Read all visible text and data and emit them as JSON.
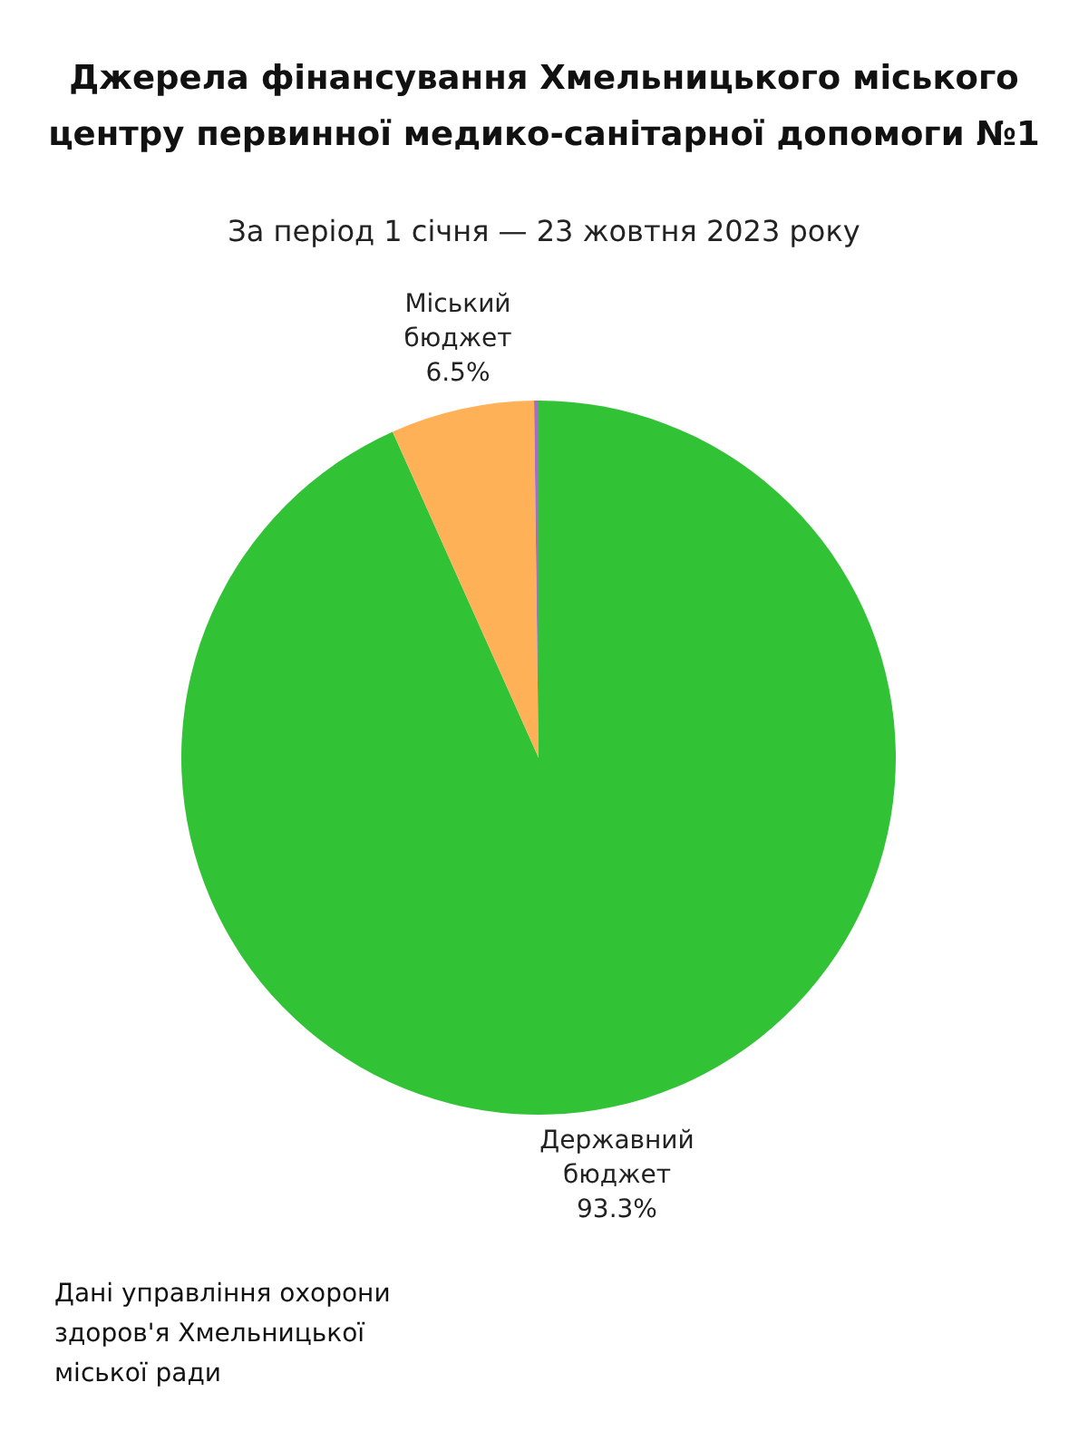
{
  "chart_data": {
    "type": "pie",
    "title": "Джерела фінансування Хмельницького міського центру первинної медико-санітарної допомоги №1",
    "subtitle": "За період 1 січня — 23 жовтня 2023 року",
    "categories": [
      "Державний бюджет",
      "Міський бюджет",
      null
    ],
    "values": [
      93.3,
      6.5,
      0.2
    ],
    "colors": [
      "#32c236",
      "#ffb157",
      "#a46fc2"
    ],
    "value_labels": [
      "93.3%",
      "6.5%",
      null
    ],
    "annotations": [
      "Дані управління охорони здоров'я Хмельницької міської ради"
    ]
  }
}
